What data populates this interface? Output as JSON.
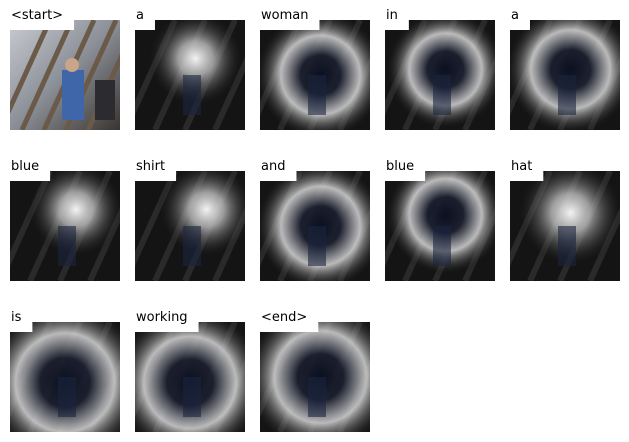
{
  "words": [
    "<start>",
    "a",
    "woman",
    "in",
    "a",
    "blue",
    "shirt",
    "and",
    "blue",
    "hat",
    "is",
    "working",
    "<end>"
  ]
}
